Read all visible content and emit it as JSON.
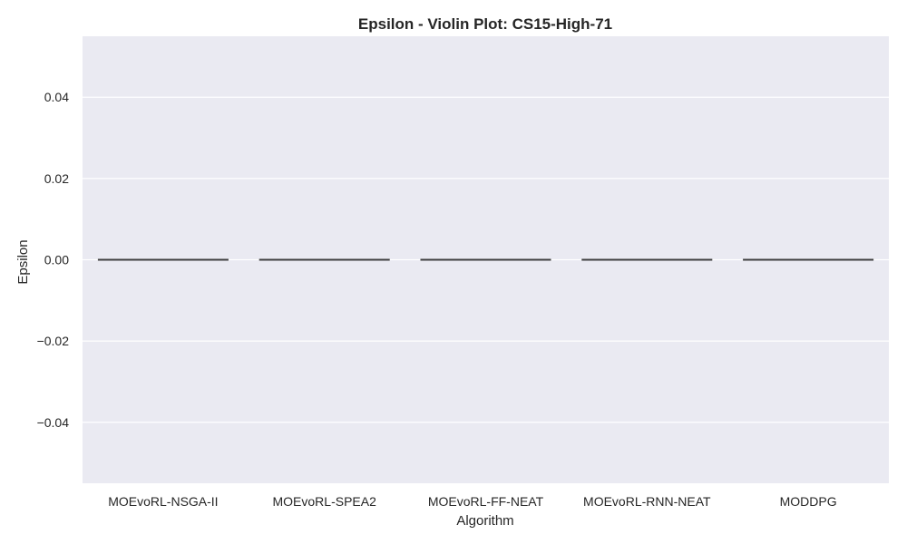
{
  "chart_data": {
    "type": "violin",
    "title": "Epsilon - Violin Plot: CS15-High-71",
    "xlabel": "Algorithm",
    "ylabel": "Epsilon",
    "categories": [
      "MOEvoRL-NSGA-II",
      "MOEvoRL-SPEA2",
      "MOEvoRL-FF-NEAT",
      "MOEvoRL-RNN-NEAT",
      "MODDPG"
    ],
    "values": [
      0.0,
      0.0,
      0.0,
      0.0,
      0.0
    ],
    "ylim": [
      -0.055,
      0.055
    ],
    "yticks": [
      0.04,
      0.02,
      0.0,
      -0.02,
      -0.04
    ],
    "ytick_labels": [
      "0.04",
      "0.02",
      "0.00",
      "−0.02",
      "−0.04"
    ],
    "grid": true,
    "colors": {
      "plot_background": "#eaeaf2",
      "grid": "#ffffff",
      "line": "#3f3f3f",
      "text": "#262626"
    }
  }
}
